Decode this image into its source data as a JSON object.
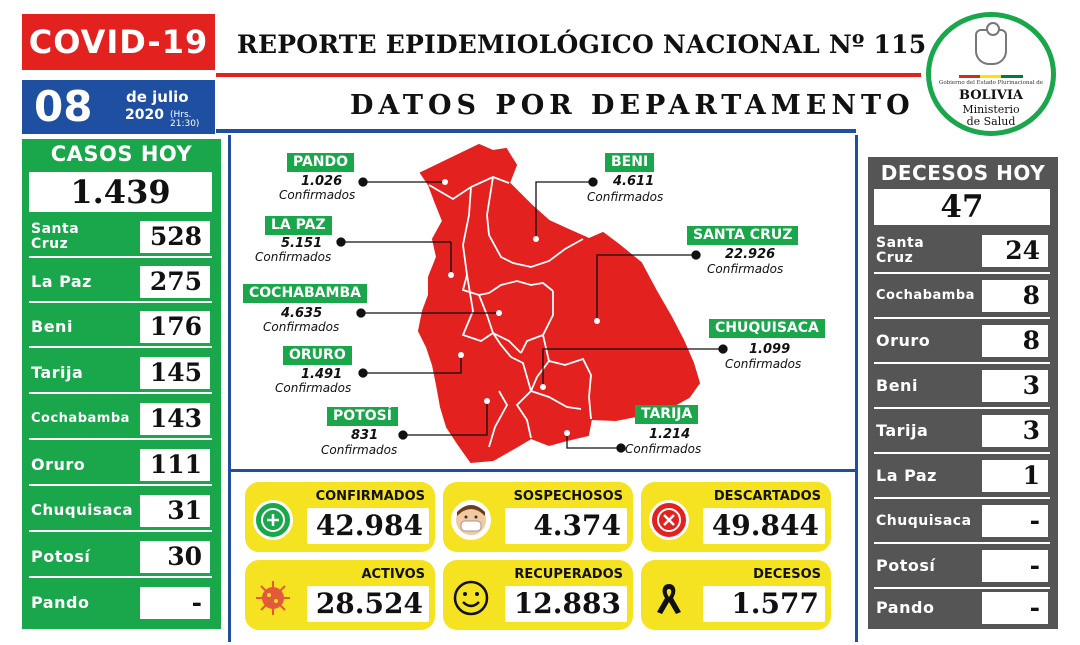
{
  "header": {
    "badge": "COVID-19",
    "title": "REPORTE EPIDEMIOLÓGICO NACIONAL Nº 115",
    "section_title": "DATOS POR DEPARTAMENTO",
    "date_day": "08",
    "date_month": "de julio",
    "date_year": "2020",
    "date_time": "(Hrs. 21:30)"
  },
  "logo": {
    "small_text": "Gobierno del Estado Plurinacional de",
    "country": "BOLIVIA",
    "ministry_line1": "Ministerio",
    "ministry_line2": "de Salud"
  },
  "cases_today": {
    "title": "CASOS HOY",
    "total": "1.439",
    "rows": [
      {
        "label": "Santa\nCruz",
        "value": "528"
      },
      {
        "label": "La Paz",
        "value": "275"
      },
      {
        "label": "Beni",
        "value": "176"
      },
      {
        "label": "Tarija",
        "value": "145"
      },
      {
        "label": "Cochabamba",
        "value": "143"
      },
      {
        "label": "Oruro",
        "value": "111"
      },
      {
        "label": "Chuquisaca",
        "value": "31"
      },
      {
        "label": "Potosí",
        "value": "30"
      },
      {
        "label": "Pando",
        "value": "-"
      }
    ]
  },
  "deaths_today": {
    "title": "DECESOS HOY",
    "total": "47",
    "rows": [
      {
        "label": "Santa\nCruz",
        "value": "24"
      },
      {
        "label": "Cochabamba",
        "value": "8"
      },
      {
        "label": "Oruro",
        "value": "8"
      },
      {
        "label": "Beni",
        "value": "3"
      },
      {
        "label": "Tarija",
        "value": "3"
      },
      {
        "label": "La Paz",
        "value": "1"
      },
      {
        "label": "Chuquisaca",
        "value": "-"
      },
      {
        "label": "Potosí",
        "value": "-"
      },
      {
        "label": "Pando",
        "value": "-"
      }
    ]
  },
  "map": {
    "sub_label": "Confirmados",
    "departments": [
      {
        "name": "PANDO",
        "value": "1.026"
      },
      {
        "name": "LA PAZ",
        "value": "5.151"
      },
      {
        "name": "COCHABAMBA",
        "value": "4.635"
      },
      {
        "name": "ORURO",
        "value": "1.491"
      },
      {
        "name": "POTOSÍ",
        "value": "831"
      },
      {
        "name": "BENI",
        "value": "4.611"
      },
      {
        "name": "SANTA CRUZ",
        "value": "22.926"
      },
      {
        "name": "CHUQUISACA",
        "value": "1.099"
      },
      {
        "name": "TARIJA",
        "value": "1.214"
      }
    ],
    "colors": {
      "map_fill": "#e3211f",
      "tag_green": "#1aa64a"
    }
  },
  "stats": [
    {
      "label": "CONFIRMADOS",
      "value": "42.984",
      "icon": "plus-icon"
    },
    {
      "label": "SOSPECHOSOS",
      "value": "4.374",
      "icon": "masked-face-icon"
    },
    {
      "label": "DESCARTADOS",
      "value": "49.844",
      "icon": "x-icon"
    },
    {
      "label": "ACTIVOS",
      "value": "28.524",
      "icon": "virus-icon"
    },
    {
      "label": "RECUPERADOS",
      "value": "12.883",
      "icon": "smile-icon"
    },
    {
      "label": "DECESOS",
      "value": "1.577",
      "icon": "mourning-ribbon-icon"
    }
  ],
  "colors": {
    "red": "#e3211f",
    "blue": "#1f4fa0",
    "green": "#1aa64a",
    "yellow": "#f5e221",
    "gray": "#555555"
  }
}
